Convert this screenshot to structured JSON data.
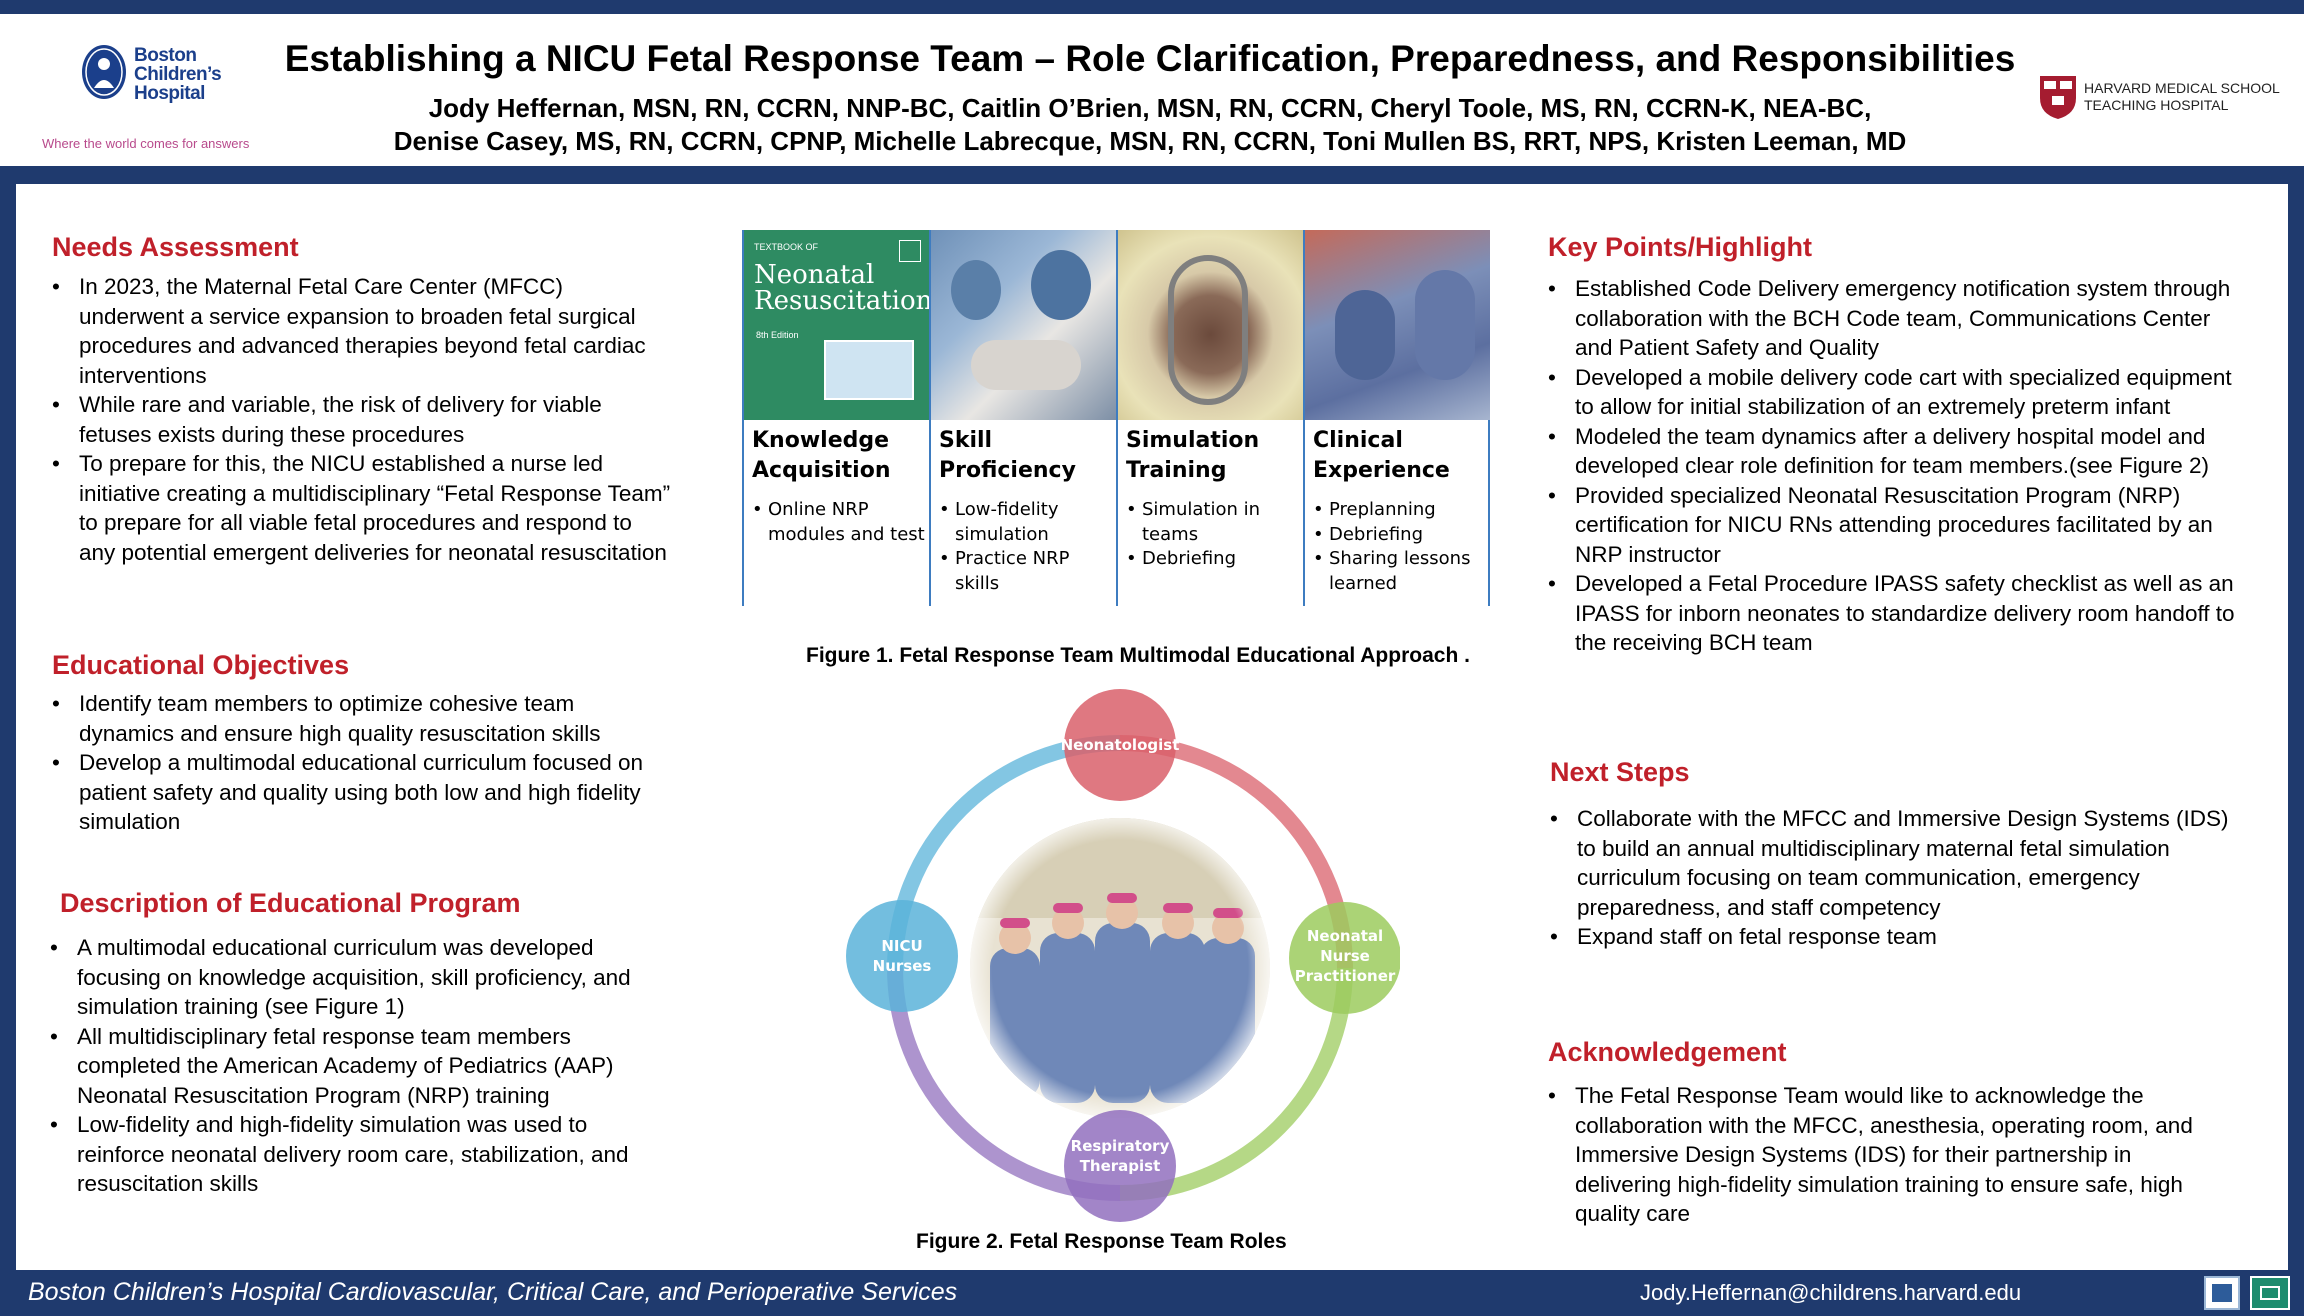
{
  "header": {
    "title": "Establishing a NICU Fetal Response Team – Role Clarification, Preparedness, and Responsibilities",
    "authors_line1": "Jody Heffernan, MSN, RN, CCRN, NNP-BC, Caitlin O’Brien, MSN, RN, CCRN, Cheryl Toole, MS, RN, CCRN-K, NEA-BC,",
    "authors_line2": "Denise Casey, MS, RN, CCRN, CPNP, Michelle Labrecque, MSN, RN, CCRN, Toni Mullen BS, RRT, NPS, Kristen Leeman, MD",
    "bch_logo": {
      "line1": "Boston",
      "line2": "Children’s",
      "line3": "Hospital",
      "tagline": "Where the world comes for answers"
    },
    "hms_logo": {
      "line1": "HARVARD MEDICAL SCHOOL",
      "line2": "TEACHING HOSPITAL"
    }
  },
  "left": {
    "needs": {
      "heading": "Needs Assessment",
      "items": [
        "In 2023, the Maternal Fetal Care Center (MFCC) underwent a service expansion to broaden fetal surgical procedures and advanced therapies beyond fetal cardiac interventions",
        "While rare and variable, the risk of delivery for viable fetuses exists during these procedures",
        "To prepare for this, the NICU established a nurse led initiative creating a multidisciplinary “Fetal Response Team” to prepare for all viable fetal procedures and respond to any potential emergent deliveries for neonatal resuscitation"
      ]
    },
    "objectives": {
      "heading": "Educational Objectives",
      "items": [
        "Identify team members to optimize cohesive team dynamics and ensure high quality resuscitation skills",
        "Develop a multimodal educational curriculum focused on patient safety and quality using both low and high fidelity simulation"
      ]
    },
    "program": {
      "heading": "Description of Educational Program",
      "items": [
        "A multimodal educational curriculum was developed focusing on knowledge acquisition, skill proficiency, and simulation training (see Figure 1)",
        "All multidisciplinary fetal response team members completed the American Academy of Pediatrics (AAP) Neonatal Resuscitation Program (NRP) training",
        "Low-fidelity and high-fidelity simulation was used to reinforce neonatal delivery room care, stabilization, and resuscitation skills"
      ]
    }
  },
  "figure1": {
    "book": {
      "small": "TEXTBOOK OF",
      "title1": "Neonatal",
      "title2": "Resuscitation",
      "edition": "8th Edition"
    },
    "columns": [
      {
        "title1": "Knowledge",
        "title2": "Acquisition",
        "items": [
          "Online NRP modules and test"
        ]
      },
      {
        "title1": "Skill",
        "title2": "Proficiency",
        "items": [
          "Low-fidelity simulation",
          "Practice NRP skills"
        ]
      },
      {
        "title1": "Simulation",
        "title2": "Training",
        "items": [
          "Simulation in teams",
          "Debriefing"
        ]
      },
      {
        "title1": "Clinical",
        "title2": "Experience",
        "items": [
          "Preplanning",
          "Debriefing",
          "Sharing lessons learned"
        ]
      }
    ],
    "caption": "Figure 1. Fetal Response Team Multimodal Educational Approach ."
  },
  "figure2": {
    "nodes": {
      "top": "Neonatologist",
      "left1": "NICU",
      "left2": "Nurses",
      "right1": "Neonatal",
      "right2": "Nurse",
      "right3": "Practitioner",
      "bottom1": "Respiratory",
      "bottom2": "Therapist"
    },
    "colors": {
      "top": "#d9606b",
      "left": "#5ab3d9",
      "right": "#9ccb5e",
      "bottom": "#9270be"
    },
    "caption": "Figure 2. Fetal Response Team Roles"
  },
  "right": {
    "keypoints": {
      "heading": "Key Points/Highlight",
      "items": [
        "Established Code Delivery emergency notification system through collaboration with the BCH Code team, Communications Center and Patient Safety and Quality",
        "Developed a mobile delivery code cart with specialized equipment to allow for initial stabilization of an extremely preterm infant",
        "Modeled the team dynamics after a delivery hospital model and developed clear role definition for team members.(see Figure 2)",
        "Provided specialized Neonatal Resuscitation Program (NRP) certification for NICU RNs attending procedures facilitated by an NRP instructor",
        "Developed a Fetal Procedure IPASS safety checklist as well as an IPASS for inborn neonates to standardize delivery room handoff to the receiving BCH team"
      ]
    },
    "nextsteps": {
      "heading": "Next Steps",
      "items": [
        "Collaborate with the MFCC and Immersive Design Systems (IDS) to build an annual multidisciplinary maternal fetal simulation curriculum focusing on team communication, emergency preparedness, and staff competency",
        "Expand staff on fetal response team"
      ]
    },
    "ack": {
      "heading": "Acknowledgement",
      "items": [
        "The Fetal Response Team would like to acknowledge the collaboration with the MFCC, anesthesia, operating room, and Immersive Design Systems (IDS) for their partnership in delivering high-fidelity simulation training to ensure safe, high quality care"
      ]
    }
  },
  "footer": {
    "left": "Boston Children’s Hospital Cardiovascular, Critical Care, and Perioperative Services",
    "email": "Jody.Heffernan@childrens.harvard.edu"
  },
  "colors": {
    "navy": "#1f3a6e",
    "section_red": "#c0202a"
  }
}
